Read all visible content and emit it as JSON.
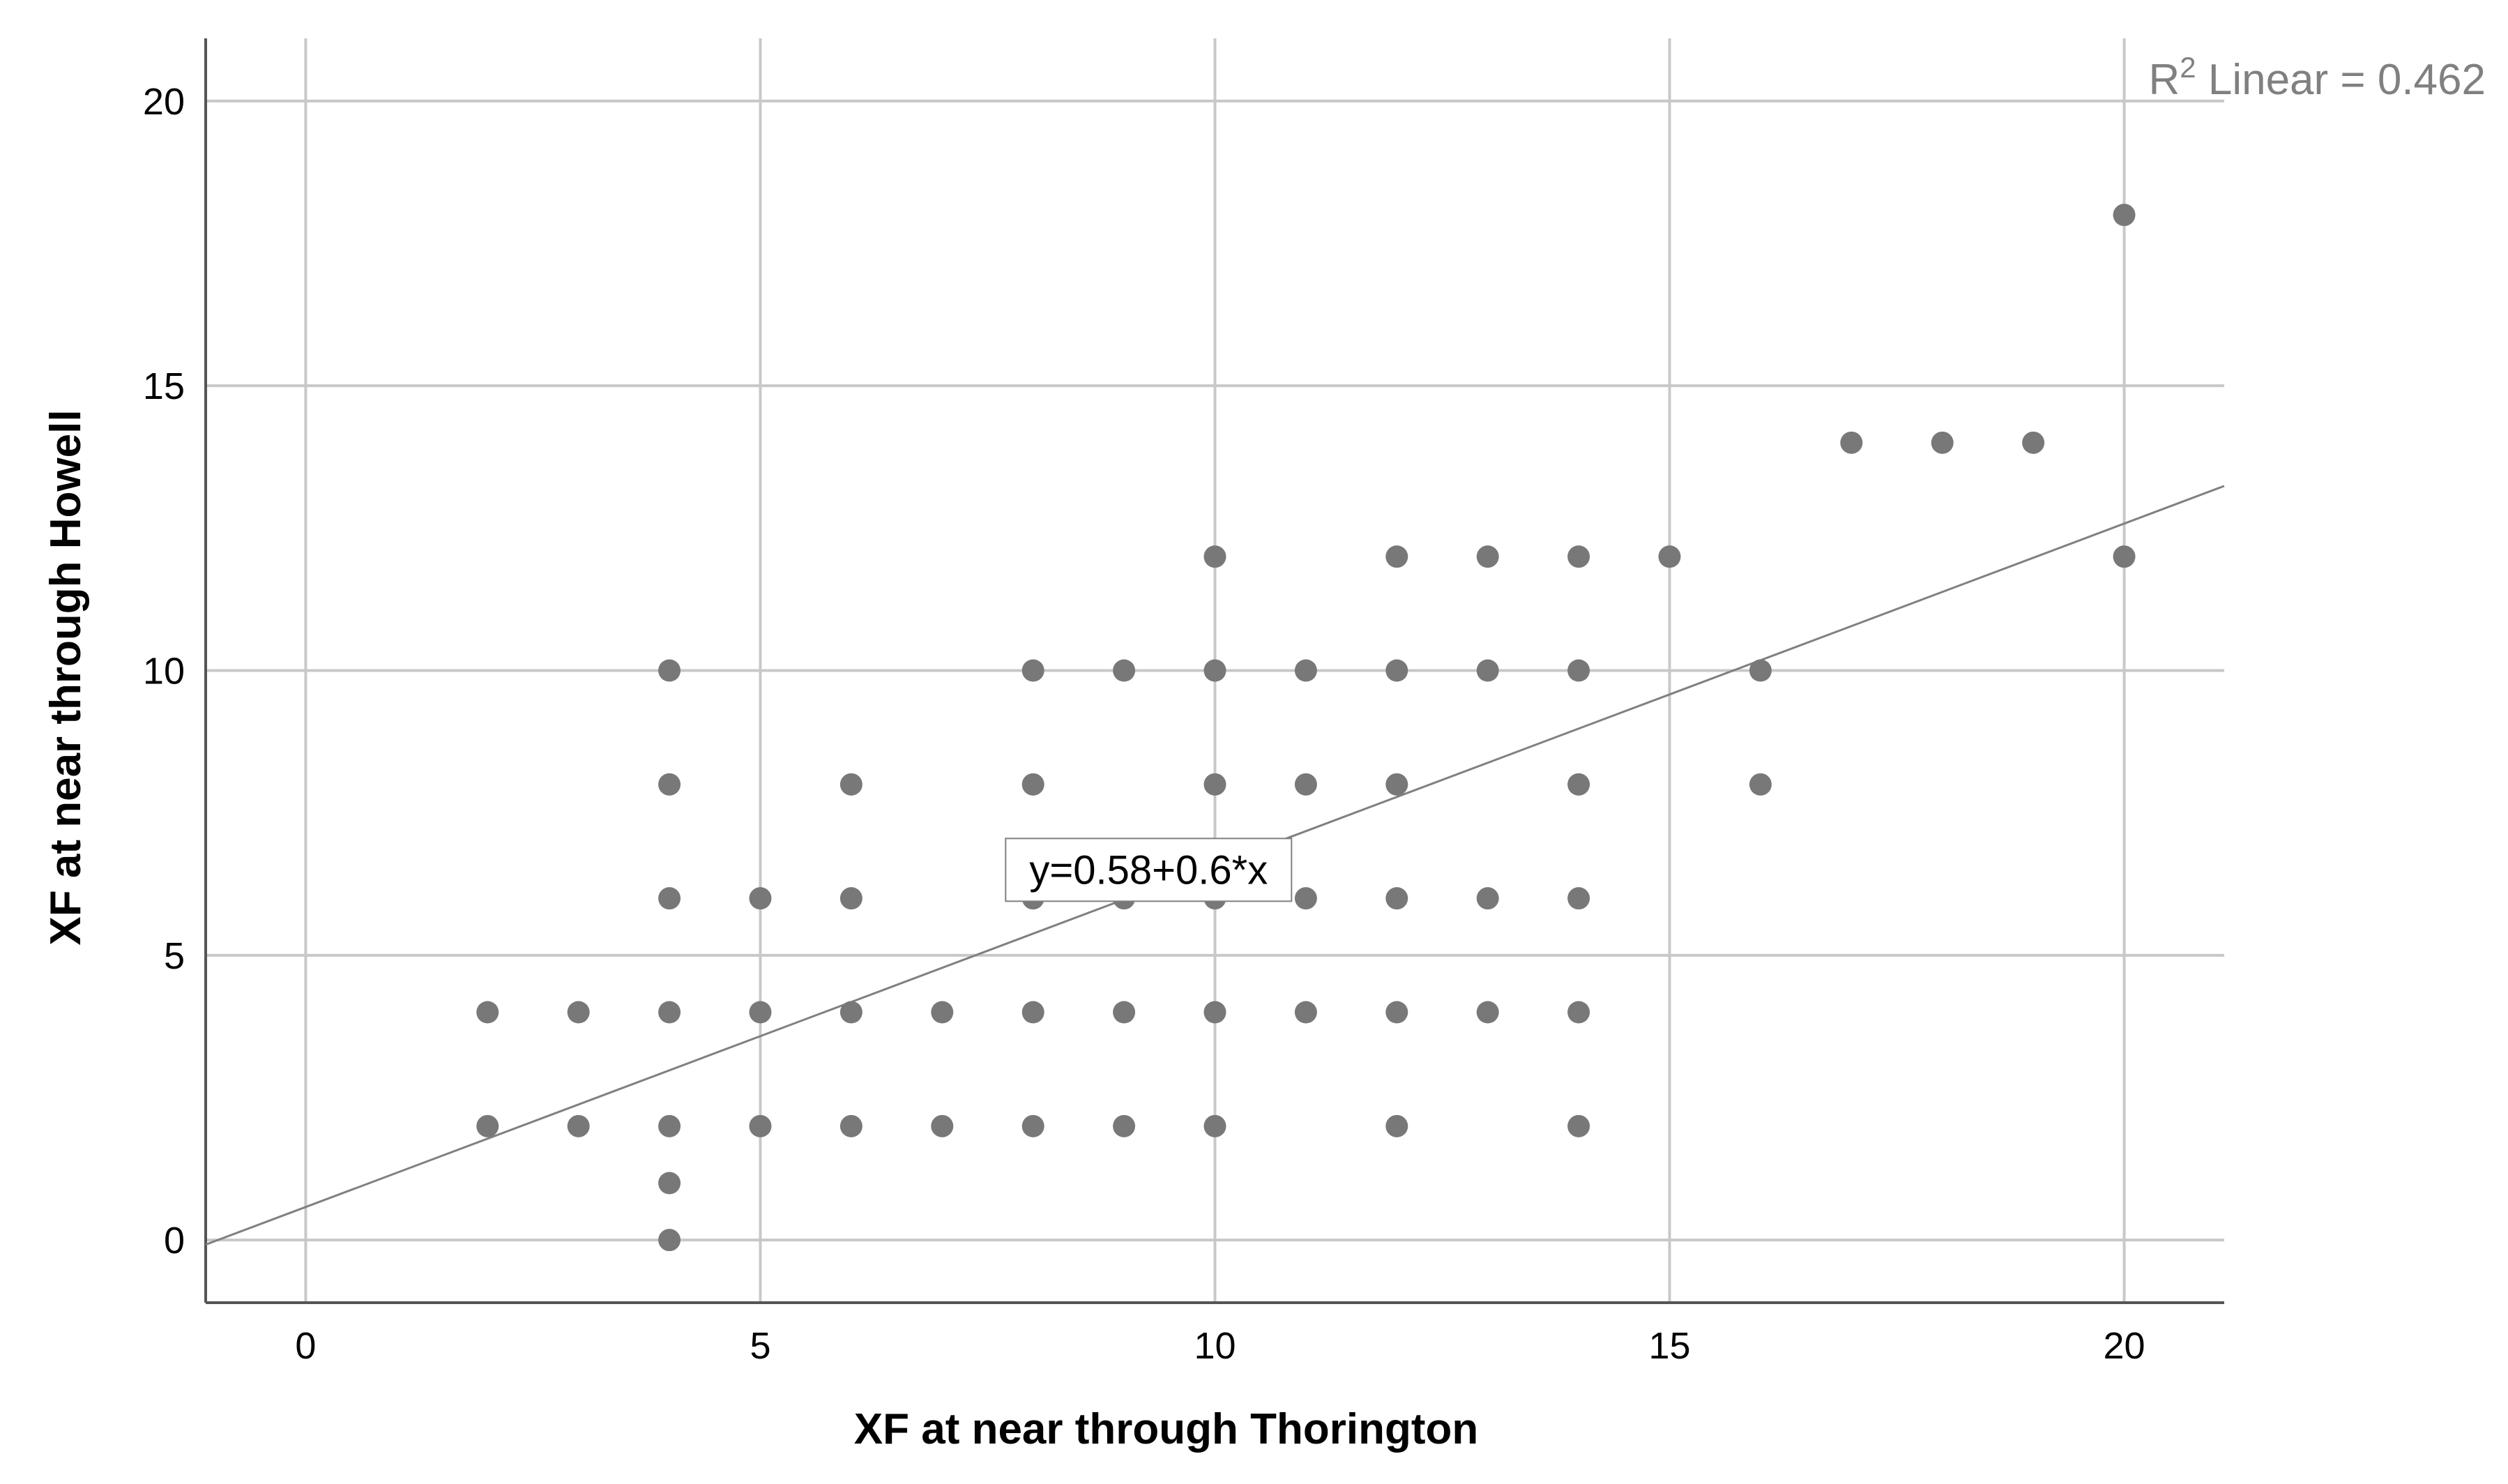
{
  "chart_data": {
    "type": "scatter",
    "xlabel": "XF at near through Thorington",
    "ylabel": "XF at near through Howell",
    "xlim": [
      -1.1,
      21.1
    ],
    "ylim": [
      -1.1,
      21.1
    ],
    "x_ticks": [
      "0",
      "5",
      "10",
      "15",
      "20"
    ],
    "y_ticks": [
      "0",
      "5",
      "10",
      "15",
      "20"
    ],
    "grid": true,
    "colors": {
      "points": "#787878",
      "grid": "#c8c8c8",
      "axis": "#555555",
      "fit_line": "#808080",
      "r2_text": "#808080"
    },
    "points": [
      {
        "x": 2,
        "y": 4
      },
      {
        "x": 2,
        "y": 2
      },
      {
        "x": 3,
        "y": 4
      },
      {
        "x": 3,
        "y": 2
      },
      {
        "x": 4,
        "y": 10
      },
      {
        "x": 4,
        "y": 8
      },
      {
        "x": 4,
        "y": 6
      },
      {
        "x": 4,
        "y": 4
      },
      {
        "x": 4,
        "y": 2
      },
      {
        "x": 4,
        "y": 1
      },
      {
        "x": 4,
        "y": 0
      },
      {
        "x": 5,
        "y": 6
      },
      {
        "x": 5,
        "y": 4
      },
      {
        "x": 5,
        "y": 2
      },
      {
        "x": 6,
        "y": 8
      },
      {
        "x": 6,
        "y": 6
      },
      {
        "x": 6,
        "y": 4
      },
      {
        "x": 6,
        "y": 2
      },
      {
        "x": 7,
        "y": 4
      },
      {
        "x": 7,
        "y": 2
      },
      {
        "x": 8,
        "y": 10
      },
      {
        "x": 8,
        "y": 8
      },
      {
        "x": 8,
        "y": 6
      },
      {
        "x": 8,
        "y": 4
      },
      {
        "x": 8,
        "y": 2
      },
      {
        "x": 9,
        "y": 10
      },
      {
        "x": 9,
        "y": 6
      },
      {
        "x": 9,
        "y": 4
      },
      {
        "x": 9,
        "y": 2
      },
      {
        "x": 10,
        "y": 12
      },
      {
        "x": 10,
        "y": 10
      },
      {
        "x": 10,
        "y": 8
      },
      {
        "x": 10,
        "y": 6
      },
      {
        "x": 10,
        "y": 4
      },
      {
        "x": 10,
        "y": 2
      },
      {
        "x": 11,
        "y": 10
      },
      {
        "x": 11,
        "y": 8
      },
      {
        "x": 11,
        "y": 6
      },
      {
        "x": 11,
        "y": 4
      },
      {
        "x": 12,
        "y": 12
      },
      {
        "x": 12,
        "y": 10
      },
      {
        "x": 12,
        "y": 8
      },
      {
        "x": 12,
        "y": 6
      },
      {
        "x": 12,
        "y": 4
      },
      {
        "x": 12,
        "y": 2
      },
      {
        "x": 13,
        "y": 12
      },
      {
        "x": 13,
        "y": 10
      },
      {
        "x": 13,
        "y": 6
      },
      {
        "x": 13,
        "y": 4
      },
      {
        "x": 14,
        "y": 12
      },
      {
        "x": 14,
        "y": 10
      },
      {
        "x": 14,
        "y": 8
      },
      {
        "x": 14,
        "y": 6
      },
      {
        "x": 14,
        "y": 4
      },
      {
        "x": 14,
        "y": 2
      },
      {
        "x": 15,
        "y": 12
      },
      {
        "x": 16,
        "y": 10
      },
      {
        "x": 16,
        "y": 8
      },
      {
        "x": 17,
        "y": 14
      },
      {
        "x": 18,
        "y": 14
      },
      {
        "x": 19,
        "y": 14
      },
      {
        "x": 20,
        "y": 18
      },
      {
        "x": 20,
        "y": 12
      }
    ],
    "fit_line": {
      "intercept": 0.58,
      "slope": 0.6,
      "equation_label": "y=0.58+0.6*x"
    },
    "r2_label": {
      "prefix": "R",
      "superscript": "2",
      "suffix": " Linear = 0.462"
    }
  }
}
